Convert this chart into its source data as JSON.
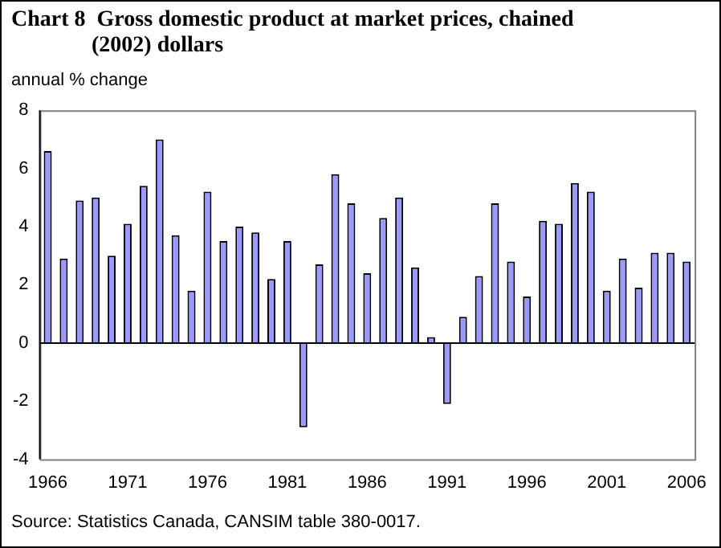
{
  "chart_data": {
    "type": "bar",
    "title": "Chart 8  Gross domestic product at market prices, chained (2002) dollars",
    "ylabel": "annual % change",
    "categories": [
      "1966",
      null,
      null,
      null,
      null,
      "1971",
      null,
      null,
      null,
      null,
      "1976",
      null,
      null,
      null,
      null,
      "1981",
      null,
      null,
      null,
      null,
      "1986",
      null,
      null,
      null,
      null,
      "1991",
      null,
      null,
      null,
      null,
      "1996",
      null,
      null,
      null,
      null,
      "2001",
      null,
      null,
      null,
      null,
      "2006"
    ],
    "values": [
      6.6,
      2.9,
      4.9,
      5.0,
      3.0,
      4.1,
      5.4,
      7.0,
      3.7,
      1.8,
      5.2,
      3.5,
      4.0,
      3.8,
      2.2,
      3.5,
      -2.9,
      2.7,
      5.8,
      4.8,
      2.4,
      4.3,
      5.0,
      2.6,
      0.2,
      -2.1,
      0.9,
      2.3,
      4.8,
      2.8,
      1.6,
      4.2,
      4.1,
      5.5,
      5.2,
      1.8,
      2.9,
      1.9,
      3.1,
      3.1,
      2.8
    ],
    "color": "#9999ff",
    "ylim": [
      -4,
      8
    ],
    "yticks": [
      -4,
      -2,
      0,
      2,
      4,
      6,
      8
    ],
    "legend": false,
    "annotations": [
      "Source: Statistics Canada, CANSIM table 380-0017."
    ]
  }
}
